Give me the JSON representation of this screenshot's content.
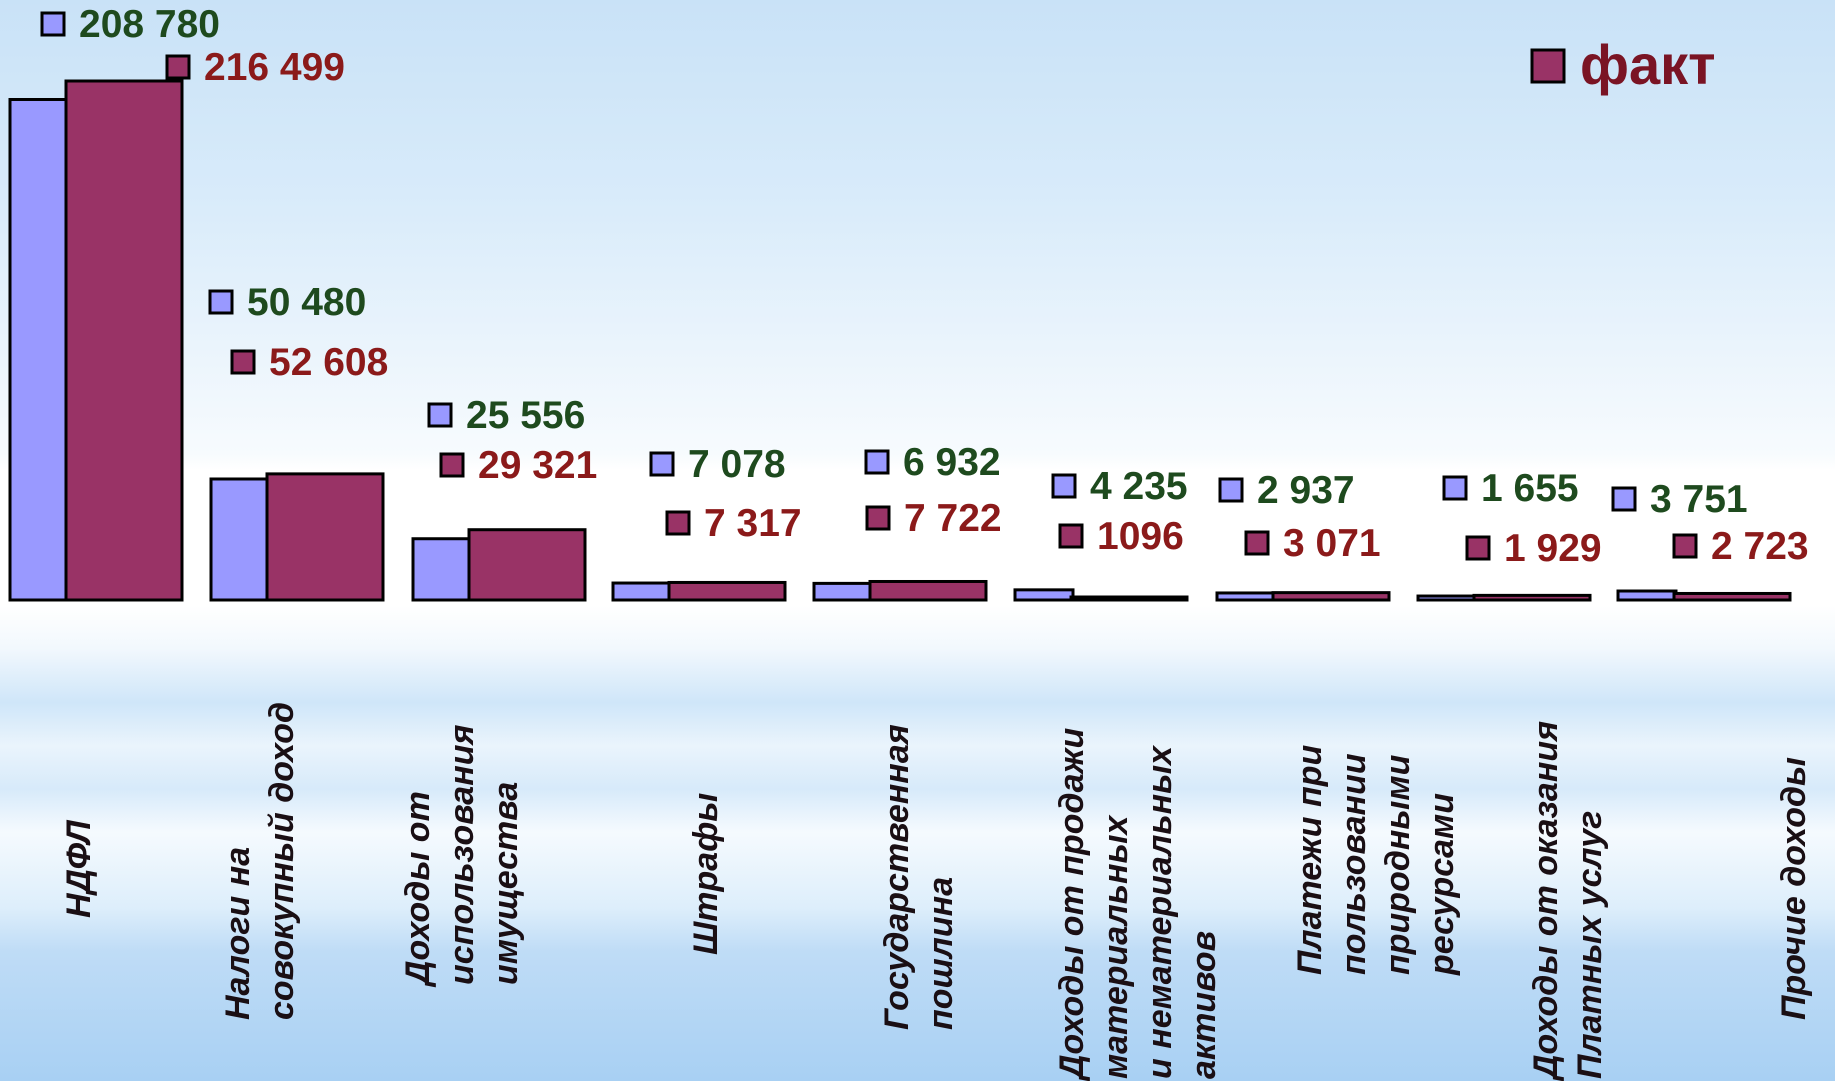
{
  "chart_data": {
    "type": "bar",
    "categories": [
      [
        "НДФЛ"
      ],
      [
        "Налоги  на",
        "совокупный доход"
      ],
      [
        "Доходы от",
        "использования",
        "имущества"
      ],
      [
        "Штрафы"
      ],
      [
        "Государственная",
        "пошлина"
      ],
      [
        "Доходы от продажи",
        "материальных",
        "и нематериальных",
        "активов"
      ],
      [
        "Платежи при",
        "пользовании",
        "природными",
        "ресурсами"
      ],
      [
        "Доходы от оказания",
        "Платных услуг"
      ],
      [
        "Прочие доходы"
      ]
    ],
    "series": [
      {
        "color": "#9999ff",
        "label_color": "#1e4a1e",
        "values": [
          208780,
          50480,
          25556,
          7078,
          6932,
          4235,
          2937,
          1655,
          3751
        ],
        "labels": [
          "208 780",
          "50 480",
          "25 556",
          "7 078",
          "6 932",
          "4 235",
          "2 937",
          "1 655",
          "3 751"
        ]
      },
      {
        "name": "факт",
        "color": "#993366",
        "label_color": "#8b1a1a",
        "values": [
          216499,
          52608,
          29321,
          7317,
          7722,
          1096,
          3071,
          1929,
          2723
        ],
        "labels": [
          "216 499",
          "52 608",
          "29 321",
          "7 317",
          "7 722",
          "1096",
          "3 071",
          "1 929",
          "2 723"
        ]
      }
    ],
    "legend": {
      "position": "top-right",
      "entries": [
        "факт"
      ]
    },
    "grid": false,
    "ylim": [
      0,
      216499
    ]
  }
}
